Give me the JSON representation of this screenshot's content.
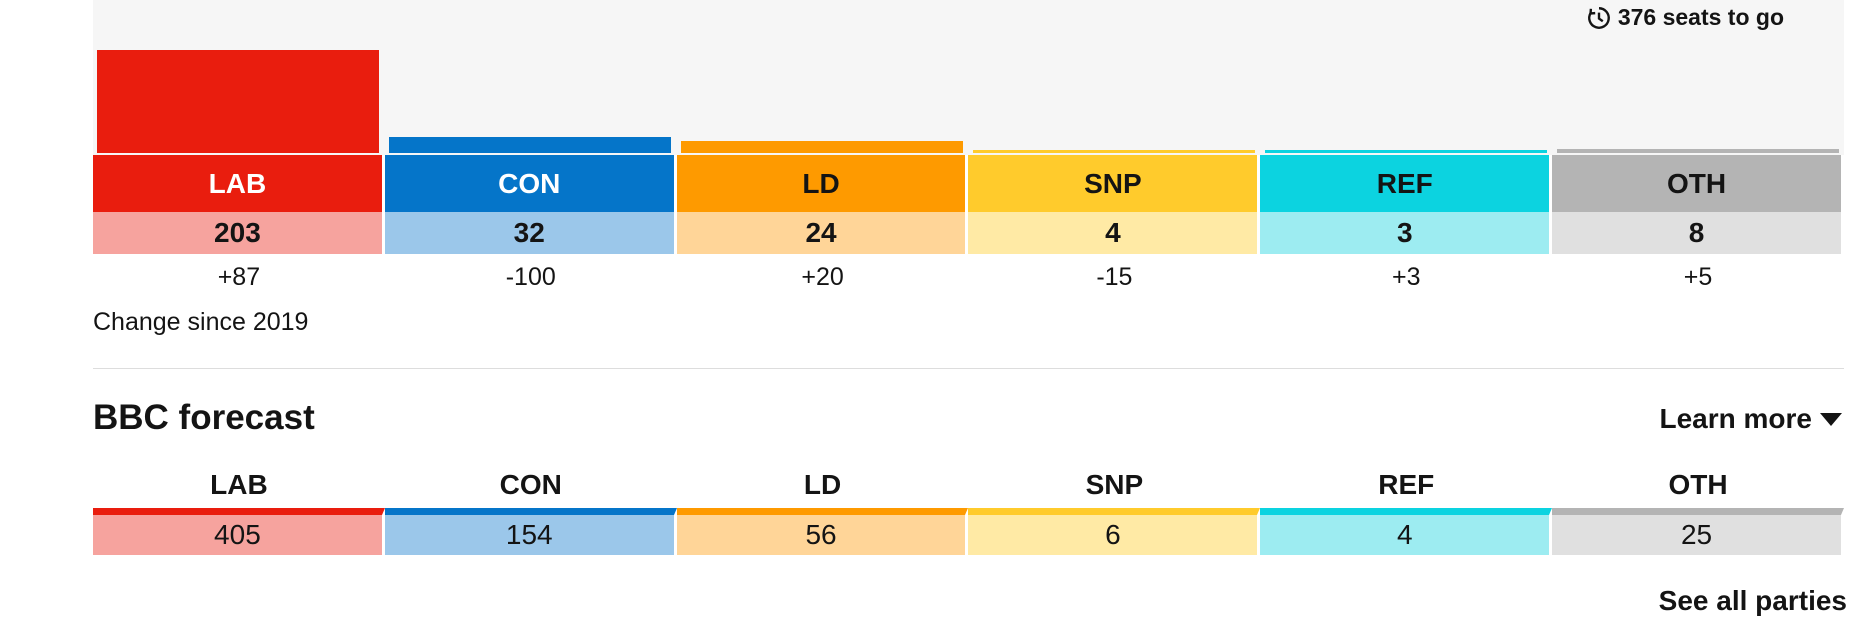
{
  "header": {
    "seats_to_go": "376 seats to go",
    "icon": "clock-countdown-icon"
  },
  "parties": [
    {
      "key": "lab",
      "label": "LAB",
      "seats": "203",
      "seats_value": 203,
      "change": "+87",
      "color": "#e91d0e",
      "light": "#f6a39e",
      "label_text_color": "#ffffff"
    },
    {
      "key": "con",
      "label": "CON",
      "seats": "32",
      "seats_value": 32,
      "change": "-100",
      "color": "#0575c9",
      "light": "#9bc7ea",
      "label_text_color": "#ffffff"
    },
    {
      "key": "ld",
      "label": "LD",
      "seats": "24",
      "seats_value": 24,
      "change": "+20",
      "color": "#fe9a00",
      "light": "#ffd598",
      "label_text_color": "#141414"
    },
    {
      "key": "snp",
      "label": "SNP",
      "seats": "4",
      "seats_value": 4,
      "change": "-15",
      "color": "#ffcb2c",
      "light": "#ffeaa5",
      "label_text_color": "#141414"
    },
    {
      "key": "ref",
      "label": "REF",
      "seats": "3",
      "seats_value": 3,
      "change": "+3",
      "color": "#0cd3e0",
      "light": "#9decf1",
      "label_text_color": "#141414"
    },
    {
      "key": "oth",
      "label": "OTH",
      "seats": "8",
      "seats_value": 8,
      "change": "+5",
      "color": "#b4b4b4",
      "light": "#e0e0e0",
      "label_text_color": "#141414"
    }
  ],
  "change_caption": "Change since 2019",
  "forecast": {
    "title": "BBC forecast",
    "learn_more": "Learn more",
    "items": [
      {
        "label": "LAB",
        "value": "405"
      },
      {
        "label": "CON",
        "value": "154"
      },
      {
        "label": "LD",
        "value": "56"
      },
      {
        "label": "SNP",
        "value": "6"
      },
      {
        "label": "REF",
        "value": "4"
      },
      {
        "label": "OTH",
        "value": "25"
      }
    ]
  },
  "see_all": "See all parties",
  "chart_data": {
    "type": "bar",
    "categories": [
      "LAB",
      "CON",
      "LD",
      "SNP",
      "REF",
      "OTH"
    ],
    "values": [
      203,
      32,
      24,
      4,
      3,
      8
    ],
    "ylim": [
      0,
      203
    ],
    "title": "",
    "xlabel": "",
    "ylabel": ""
  }
}
